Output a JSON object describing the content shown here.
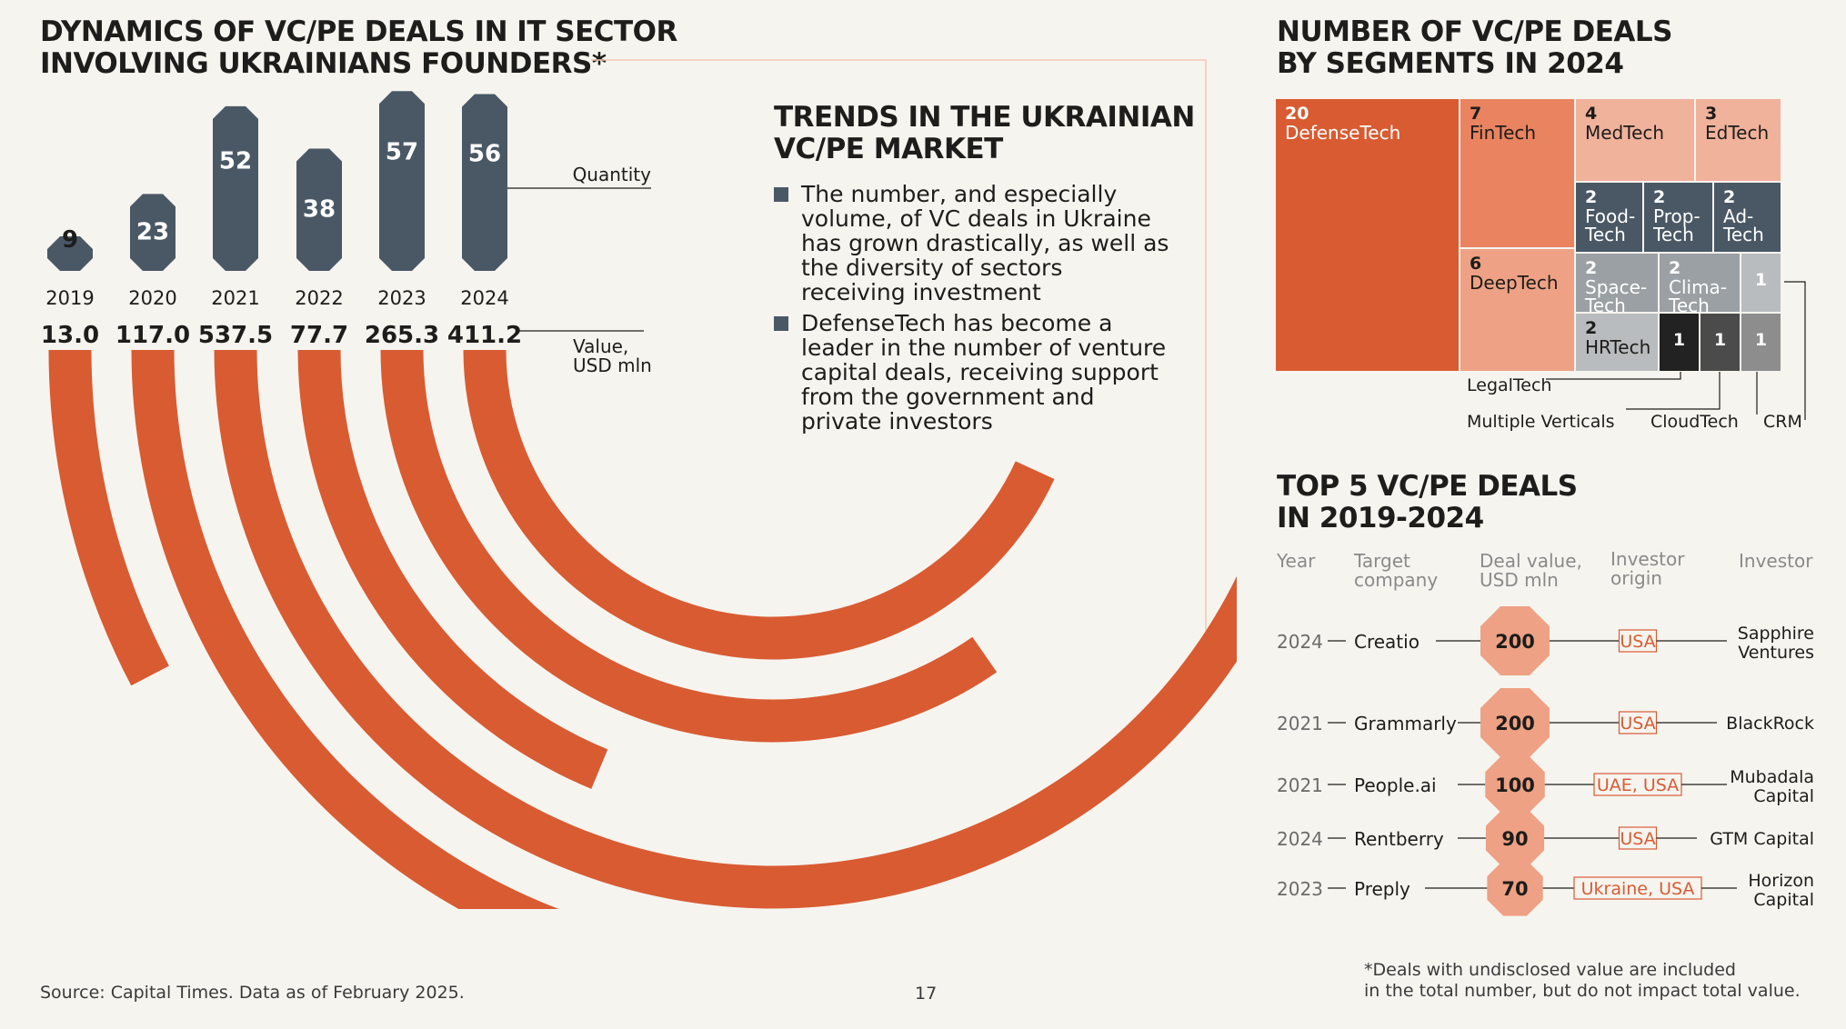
{
  "left": {
    "title_lines": [
      "DYNAMICS OF VC/PE DEALS IN IT SECTOR",
      "INVOLVING UKRAINIANS FOUNDERS*"
    ],
    "quantity_label": "Quantity",
    "value_label_lines": [
      "Value,",
      "USD mln"
    ]
  },
  "trends": {
    "title_lines": [
      "TRENDS IN THE UKRAINIAN",
      "VC/PE MARKET"
    ],
    "items": [
      {
        "lines": [
          "The number, and especially",
          "volume, of VC deals in Ukraine",
          "has grown drastically, as well as",
          "the diversity of sectors",
          "receiving investment"
        ]
      },
      {
        "lines": [
          "DefenseTech has become a",
          "leader in the number of venture",
          "capital deals, receiving support",
          "from the government and",
          "private investors"
        ]
      }
    ]
  },
  "chart_data": [
    {
      "type": "bar",
      "categories": [
        "2019",
        "2020",
        "2021",
        "2022",
        "2023",
        "2024"
      ],
      "series": [
        {
          "name": "Quantity",
          "values": [
            9,
            23,
            52,
            38,
            57,
            56
          ]
        },
        {
          "name": "Value, USD mln",
          "values": [
            13.0,
            117.0,
            537.5,
            77.7,
            265.3,
            411.2
          ]
        }
      ],
      "value_labels": [
        "13.0",
        "117.0",
        "537.5",
        "77.7",
        "265.3",
        "411.2"
      ]
    },
    {
      "type": "treemap",
      "title_lines": [
        "NUMBER OF VC/PE DEALS",
        "BY SEGMENTS IN 2024"
      ],
      "segments": [
        {
          "label": "DefenseTech",
          "value": 20
        },
        {
          "label": "FinTech",
          "value": 7
        },
        {
          "label": "MedTech",
          "value": 4
        },
        {
          "label": "EdTech",
          "value": 3
        },
        {
          "label": "Food-Tech",
          "value": 2
        },
        {
          "label": "Prop-Tech",
          "value": 2
        },
        {
          "label": "Ad-Tech",
          "value": 2
        },
        {
          "label": "DeepTech",
          "value": 6
        },
        {
          "label": "Space-Tech",
          "value": 2
        },
        {
          "label": "Clima-Tech",
          "value": 2
        },
        {
          "label": "HRTech",
          "value": 2
        },
        {
          "label": "LegalTech",
          "value": 1
        },
        {
          "label": "Multiple Verticals",
          "value": 1
        },
        {
          "label": "CloudTech",
          "value": 1
        },
        {
          "label": "CRM",
          "value": 1
        }
      ]
    },
    {
      "type": "table",
      "title_lines": [
        "TOP 5 VC/PE DEALS",
        "IN 2019-2024"
      ],
      "columns": [
        "Year",
        "Target company",
        "Deal value, USD mln",
        "Investor origin",
        "Investor"
      ],
      "rows": [
        {
          "year": "2024",
          "company": "Creatio",
          "value": 200,
          "value_label": "200",
          "origin": "USA",
          "investor": "Sapphire Ventures"
        },
        {
          "year": "2021",
          "company": "Grammarly",
          "value": 200,
          "value_label": "200",
          "origin": "USA",
          "investor": "BlackRock"
        },
        {
          "year": "2021",
          "company": "People.ai",
          "value": 100,
          "value_label": "100",
          "origin": "UAE, USA",
          "investor": "Mubadala Capital"
        },
        {
          "year": "2024",
          "company": "Rentberry",
          "value": 90,
          "value_label": "90",
          "origin": "USA",
          "investor": "GTM Capital"
        },
        {
          "year": "2023",
          "company": "Preply",
          "value": 70,
          "value_label": "70",
          "origin": "Ukraine, USA",
          "investor": "Horizon Capital"
        }
      ]
    }
  ],
  "footer": {
    "source": "Source: Capital Times. Data as of February 2025.",
    "page_number": "17",
    "footnote_lines": [
      "*Deals with undisclosed value are included",
      "in the total number, but do not impact total value."
    ]
  },
  "colors": {
    "dark": "#4a5866",
    "orange": "#d95b32",
    "salmon": "#e98360",
    "peach": "#eea184",
    "light_peach": "#f0b29b",
    "gray": "#9aa0a4",
    "light_gray": "#b9bcbe",
    "black": "#222222",
    "dark_gray": "#4b4b4b",
    "mid_gray": "#8d8d8d"
  }
}
